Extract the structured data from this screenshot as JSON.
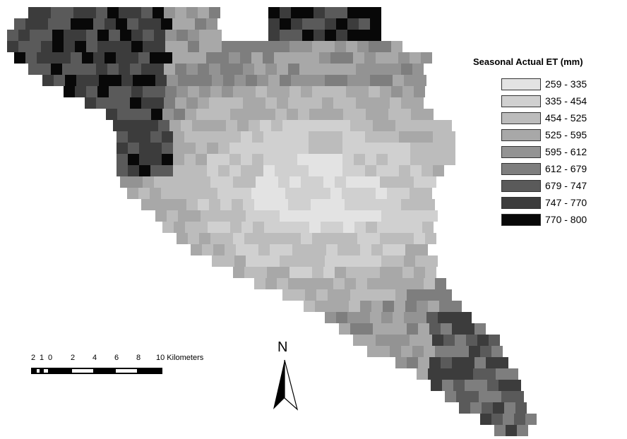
{
  "legend": {
    "title": "Seasonal Actual ET (mm)",
    "classes": [
      {
        "label": "259 - 335",
        "color": "#e3e3e3"
      },
      {
        "label": "335 - 454",
        "color": "#d0d0d0"
      },
      {
        "label": "454 - 525",
        "color": "#bcbcbc"
      },
      {
        "label": "525 - 595",
        "color": "#a8a8a8"
      },
      {
        "label": "595 - 612",
        "color": "#939393"
      },
      {
        "label": "612 - 679",
        "color": "#7e7e7e"
      },
      {
        "label": "679 - 747",
        "color": "#5a5a5a"
      },
      {
        "label": "747 - 770",
        "color": "#3c3c3c"
      },
      {
        "label": "770 - 800",
        "color": "#080808"
      }
    ]
  },
  "scale_bar": {
    "ticks": [
      "2",
      "1",
      "0",
      "2",
      "4",
      "6",
      "8",
      "10 Kilometers"
    ]
  },
  "north_arrow": {
    "label": "N",
    "icon": "north-arrow-icon"
  }
}
